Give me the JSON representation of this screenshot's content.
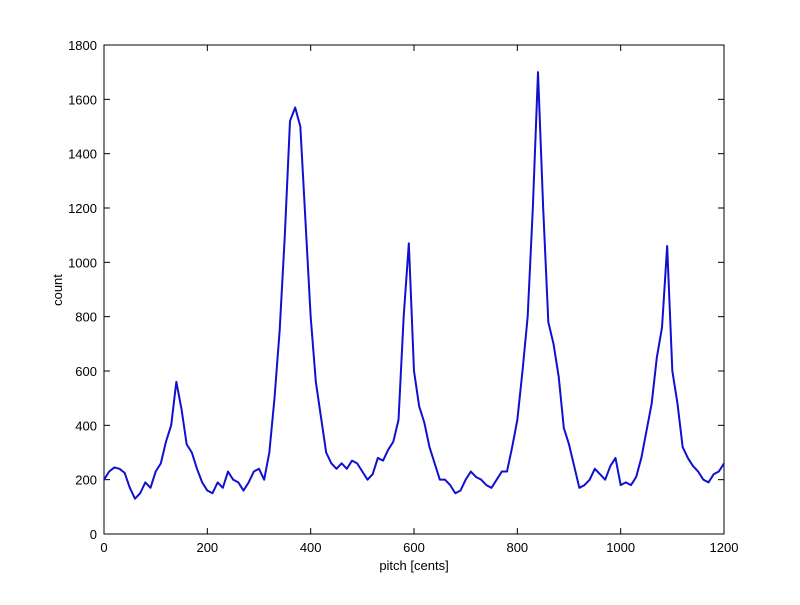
{
  "chart_data": {
    "type": "line",
    "xlabel": "pitch [cents]",
    "ylabel": "count",
    "xlim": [
      0,
      1200
    ],
    "ylim": [
      0,
      1800
    ],
    "xticks": [
      0,
      200,
      400,
      600,
      800,
      1000,
      1200
    ],
    "yticks": [
      0,
      200,
      400,
      600,
      800,
      1000,
      1200,
      1400,
      1600,
      1800
    ],
    "x": [
      0,
      10,
      20,
      30,
      40,
      50,
      60,
      70,
      80,
      90,
      100,
      110,
      120,
      130,
      140,
      150,
      160,
      170,
      180,
      190,
      200,
      210,
      220,
      230,
      240,
      250,
      260,
      270,
      280,
      290,
      300,
      310,
      320,
      330,
      340,
      350,
      360,
      370,
      380,
      390,
      400,
      410,
      420,
      430,
      440,
      450,
      460,
      470,
      480,
      490,
      500,
      510,
      520,
      530,
      540,
      550,
      560,
      570,
      580,
      590,
      600,
      610,
      620,
      630,
      640,
      650,
      660,
      670,
      680,
      690,
      700,
      710,
      720,
      730,
      740,
      750,
      760,
      770,
      780,
      790,
      800,
      810,
      820,
      830,
      840,
      850,
      860,
      870,
      880,
      890,
      900,
      910,
      920,
      930,
      940,
      950,
      960,
      970,
      980,
      990,
      1000,
      1010,
      1020,
      1030,
      1040,
      1050,
      1060,
      1070,
      1080,
      1090,
      1100,
      1110,
      1120,
      1130,
      1140,
      1150,
      1160,
      1170,
      1180,
      1190,
      1200
    ],
    "series": [
      {
        "color": "#1010d0",
        "values": [
          200,
          230,
          245,
          240,
          225,
          170,
          130,
          150,
          190,
          170,
          230,
          260,
          340,
          400,
          560,
          460,
          330,
          300,
          240,
          190,
          160,
          150,
          190,
          170,
          230,
          200,
          190,
          160,
          190,
          230,
          240,
          200,
          300,
          500,
          750,
          1100,
          1520,
          1570,
          1500,
          1150,
          800,
          560,
          430,
          300,
          260,
          240,
          260,
          240,
          270,
          260,
          230,
          200,
          220,
          280,
          270,
          310,
          340,
          420,
          800,
          1070,
          600,
          470,
          410,
          320,
          260,
          200,
          200,
          180,
          150,
          160,
          200,
          230,
          210,
          200,
          180,
          170,
          200,
          230,
          230,
          320,
          420,
          600,
          800,
          1200,
          1700,
          1200,
          780,
          700,
          580,
          390,
          330,
          250,
          170,
          180,
          200,
          240,
          220,
          200,
          250,
          280,
          180,
          190,
          180,
          210,
          280,
          380,
          480,
          650,
          760,
          1060,
          600,
          480,
          320,
          280,
          250,
          230,
          200,
          190,
          220,
          230,
          260
        ]
      }
    ]
  }
}
